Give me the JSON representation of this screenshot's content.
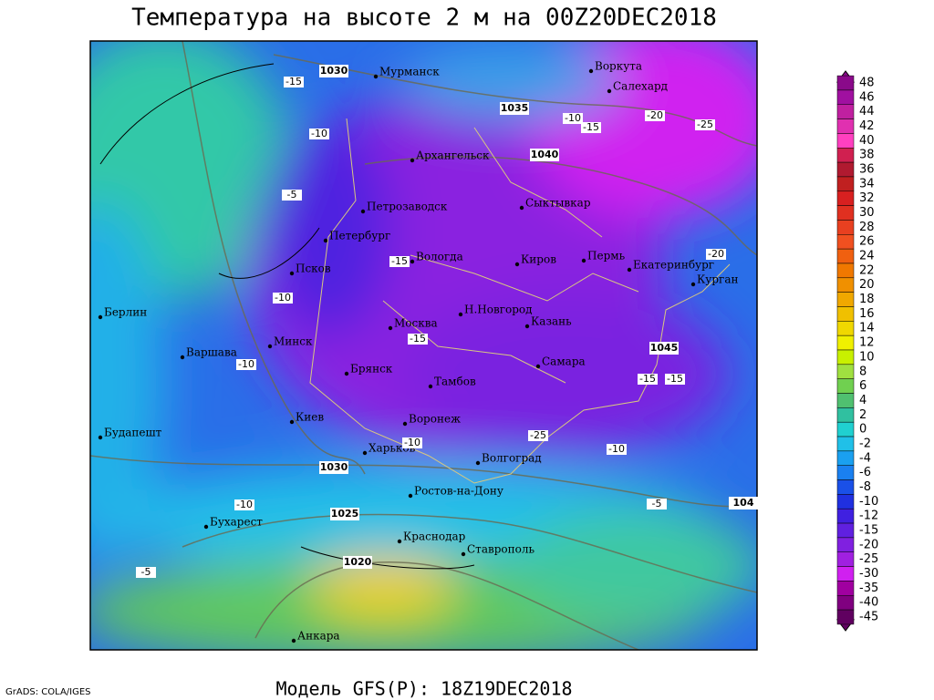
{
  "title": "Температура на высоте 2 м на 00Z20DEC2018",
  "footer": "Модель GFS(P): 18Z19DEC2018",
  "credit": "GrADS: COLA/IGES",
  "cities": [
    "Мурманск",
    "Воркута",
    "Салехард",
    "Архангельск",
    "Сыктывкар",
    "Петрозаводск",
    "Петербург",
    "Вологда",
    "Киров",
    "Пермь",
    "Екатеринбург",
    "Курган",
    "Псков",
    "Берлин",
    "Н.Новгород",
    "Москва",
    "Казань",
    "Минск",
    "Варшава",
    "Самара",
    "Брянск",
    "Тамбов",
    "Киев",
    "Воронеж",
    "Будапешт",
    "Харьков",
    "Волгоград",
    "Ростов-на-Дону",
    "Бухарест",
    "Краснодар",
    "Ставрополь",
    "Анкара"
  ],
  "pressure_labels": [
    1030,
    1035,
    1040,
    1045,
    1030,
    1025,
    1020,
    104
  ],
  "temperature_labels": [
    -15,
    -10,
    -5,
    -10,
    -15,
    -15,
    -10,
    -15,
    -15,
    -25,
    -10,
    -10,
    -5,
    -20,
    -25,
    -20,
    -10,
    -15,
    -5,
    -10
  ],
  "legend": [
    {
      "value": 48,
      "color": "#8a0a8a"
    },
    {
      "value": 46,
      "color": "#a010a0"
    },
    {
      "value": 44,
      "color": "#c020a0"
    },
    {
      "value": 42,
      "color": "#e030b0"
    },
    {
      "value": 40,
      "color": "#ff40c0"
    },
    {
      "value": 38,
      "color": "#d02050"
    },
    {
      "value": 36,
      "color": "#b01a30"
    },
    {
      "value": 34,
      "color": "#c02020"
    },
    {
      "value": 32,
      "color": "#d82020"
    },
    {
      "value": 30,
      "color": "#e03020"
    },
    {
      "value": 28,
      "color": "#e84020"
    },
    {
      "value": 26,
      "color": "#f05020"
    },
    {
      "value": 24,
      "color": "#f06010"
    },
    {
      "value": 22,
      "color": "#f07800"
    },
    {
      "value": 20,
      "color": "#f09000"
    },
    {
      "value": 18,
      "color": "#f0a800"
    },
    {
      "value": 16,
      "color": "#f0c000"
    },
    {
      "value": 14,
      "color": "#f0d800"
    },
    {
      "value": 12,
      "color": "#f0f000"
    },
    {
      "value": 10,
      "color": "#c8f000"
    },
    {
      "value": 8,
      "color": "#a0e040"
    },
    {
      "value": 6,
      "color": "#70d050"
    },
    {
      "value": 4,
      "color": "#50c070"
    },
    {
      "value": 2,
      "color": "#30c0a0"
    },
    {
      "value": 0,
      "color": "#20d0d0"
    },
    {
      "value": -2,
      "color": "#20c0e8"
    },
    {
      "value": -4,
      "color": "#1aa0f0"
    },
    {
      "value": -6,
      "color": "#1a80f0"
    },
    {
      "value": -8,
      "color": "#1a50e8"
    },
    {
      "value": -10,
      "color": "#2030e0"
    },
    {
      "value": -12,
      "color": "#4020e0"
    },
    {
      "value": -15,
      "color": "#6020e0"
    },
    {
      "value": -20,
      "color": "#8020e0"
    },
    {
      "value": -25,
      "color": "#a020e0"
    },
    {
      "value": -30,
      "color": "#d020f0"
    },
    {
      "value": -35,
      "color": "#a000a0"
    },
    {
      "value": -40,
      "color": "#800080"
    },
    {
      "value": -45,
      "color": "#600060"
    }
  ]
}
